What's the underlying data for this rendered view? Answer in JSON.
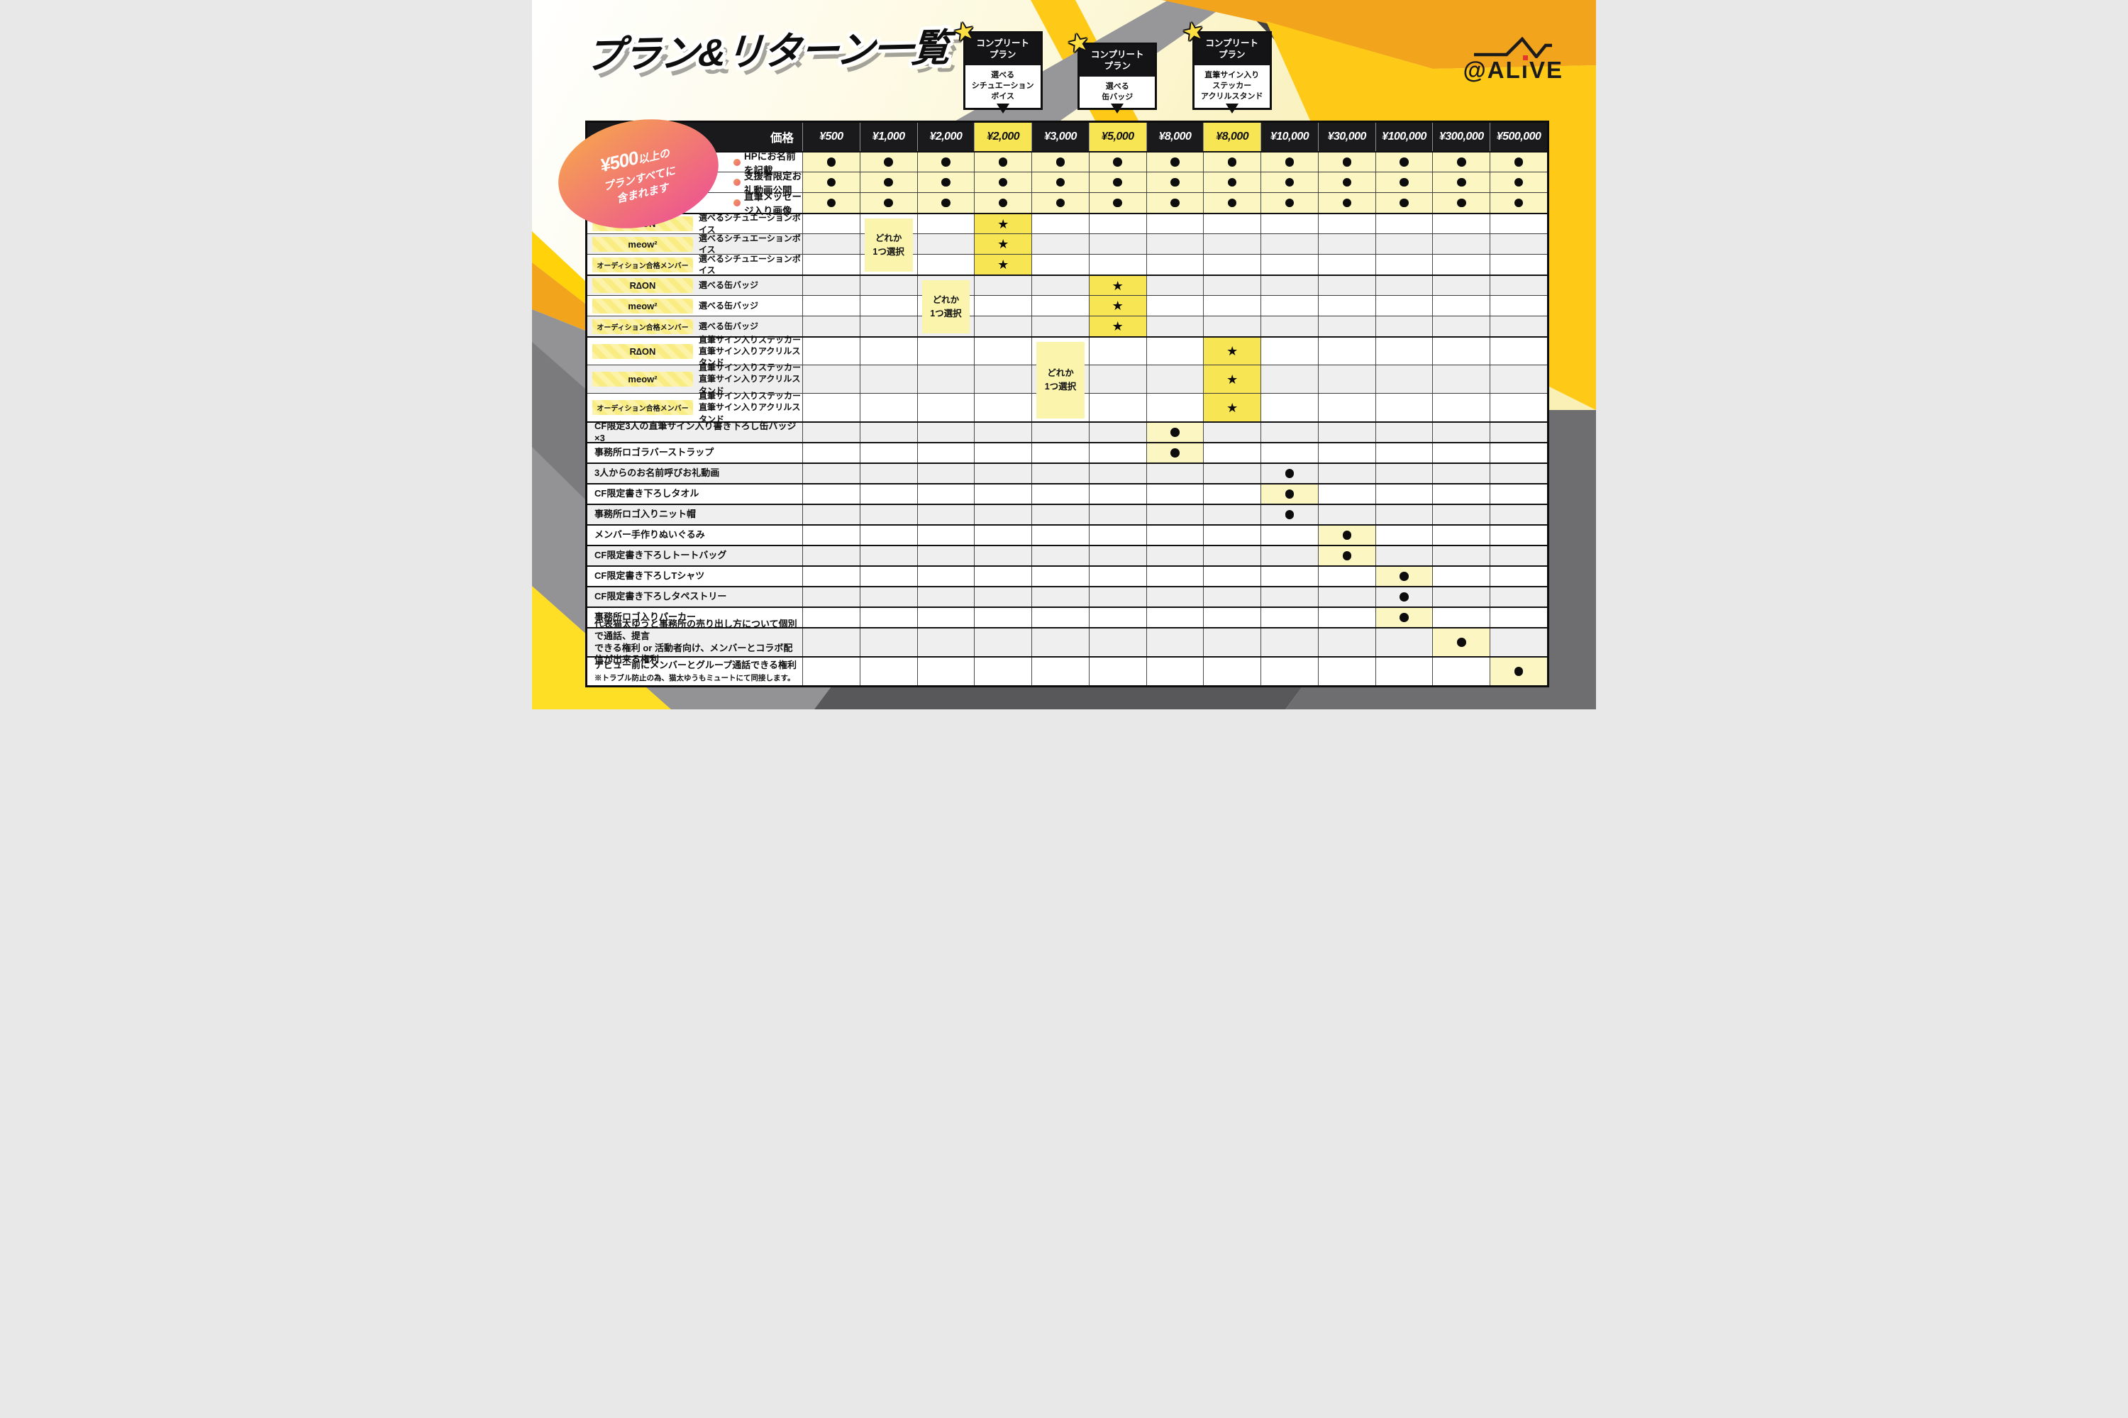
{
  "page_title": "プラン&リターン一覧",
  "logo": {
    "text": "@ALiVE",
    "pre": "@AL",
    "i_char": "ı",
    "post": "VE"
  },
  "included_note": {
    "strong": "¥500",
    "line1_rest": "以上の",
    "line2": "プランすべてに",
    "line3": "含まれます"
  },
  "complete_plan_badges": [
    {
      "title_text": "コンプリート\nプラン",
      "body_text": "選べる\nシチュエーション\nボイス",
      "column_index": 3
    },
    {
      "title_text": "コンプリート\nプラン",
      "body_text": "選べる\n缶バッジ",
      "column_index": 5
    },
    {
      "title_text": "コンプリート\nプラン",
      "body_text": "直筆サイン入り\nステッカー\nアクリルスタンド",
      "column_index": 7
    }
  ],
  "icons": {
    "star": "★",
    "dot": "●"
  },
  "table": {
    "price_header_label": "価格",
    "price_columns": [
      "¥500",
      "¥1,000",
      "¥2,000",
      "¥2,000",
      "¥3,000",
      "¥5,000",
      "¥8,000",
      "¥8,000",
      "¥10,000",
      "¥30,000",
      "¥100,000",
      "¥300,000",
      "¥500,000"
    ],
    "highlighted_columns": [
      3,
      5,
      7
    ],
    "common_rows": [
      "HPにお名前を記載",
      "支援者限定お礼動画公開",
      "直筆メッセージ入り画像"
    ],
    "choice_groups": [
      {
        "rows": [
          {
            "chip": "R∆ON",
            "shade": false
          },
          {
            "chip": "meow²",
            "shade": true
          },
          {
            "chip": "オーディション合格メンバー",
            "shade": false
          }
        ],
        "desc_text": "選べるシチュエーションボイス",
        "star_column": 3,
        "note_text": "どれか\n1つ選択",
        "note_column": 1,
        "tall": false
      },
      {
        "rows": [
          {
            "chip": "R∆ON",
            "shade": true
          },
          {
            "chip": "meow²",
            "shade": false
          },
          {
            "chip": "オーディション合格メンバー",
            "shade": true
          }
        ],
        "desc_text": "選べる缶バッジ",
        "star_column": 5,
        "note_text": "どれか\n1つ選択",
        "note_column": 2,
        "tall": false
      },
      {
        "rows": [
          {
            "chip": "R∆ON",
            "shade": false
          },
          {
            "chip": "meow²",
            "shade": true
          },
          {
            "chip": "オーディション合格メンバー",
            "shade": false
          }
        ],
        "desc_text": "直筆サイン入りステッカー\n直筆サイン入りアクリルスタンド",
        "star_column": 7,
        "note_text": "どれか\n1つ選択",
        "note_column": 4,
        "tall": true
      }
    ],
    "item_rows": [
      {
        "label": "CF限定3人の直筆サイン入り書き下ろし缶バッジ×3",
        "dot_column": 6,
        "highlight": true,
        "shade": true,
        "tall": false
      },
      {
        "label": "事務所ロゴラバーストラップ",
        "dot_column": 6,
        "highlight": true,
        "shade": false,
        "tall": false
      },
      {
        "label": "3人からのお名前呼びお礼動画",
        "dot_column": 8,
        "highlight": false,
        "shade": true,
        "tall": false
      },
      {
        "label": "CF限定書き下ろしタオル",
        "dot_column": 8,
        "highlight": true,
        "shade": false,
        "tall": false
      },
      {
        "label": "事務所ロゴ入りニット帽",
        "dot_column": 8,
        "highlight": false,
        "shade": true,
        "tall": false
      },
      {
        "label": "メンバー手作りぬいぐるみ",
        "dot_column": 9,
        "highlight": true,
        "shade": false,
        "tall": false
      },
      {
        "label": "CF限定書き下ろしトートバッグ",
        "dot_column": 9,
        "highlight": true,
        "shade": true,
        "tall": false
      },
      {
        "label": "CF限定書き下ろしTシャツ",
        "dot_column": 10,
        "highlight": true,
        "shade": false,
        "tall": false
      },
      {
        "label": "CF限定書き下ろしタペストリー",
        "dot_column": 10,
        "highlight": false,
        "shade": true,
        "tall": false
      },
      {
        "label": "事務所ロゴ入りパーカー",
        "dot_column": 10,
        "highlight": true,
        "shade": false,
        "tall": false
      },
      {
        "label": "代表猫太ゆうと事務所の売り出し方について個別で通話、提言\nできる権利 or 活動者向け、メンバーとコラボ配信が出来る権利",
        "dot_column": 11,
        "highlight": true,
        "shade": true,
        "tall": true
      },
      {
        "label": "デビュー前にメンバーとグループ通話できる権利",
        "sub_label": "※トラブル防止の為、猫太ゆうもミュートにて同接します。",
        "dot_column": 12,
        "highlight": true,
        "shade": false,
        "tall": true
      }
    ]
  },
  "colors": {
    "header_black": "#1A1A1C",
    "accent_yellow": "#F8E553",
    "pale_yellow": "#FCF6C3",
    "note_yellow": "#FBF4AC",
    "chip_yellow": "#FCF3A9",
    "chip_stripe_yellow": "#F8EC83",
    "shade_gray": "#EFEFEF",
    "amber": "#F2A41D",
    "bright_yellow": "#FFC917",
    "promo_gradient_from": "#F6A250",
    "promo_gradient_to": "#EE5B8C",
    "logo_red": "#E2382B"
  }
}
